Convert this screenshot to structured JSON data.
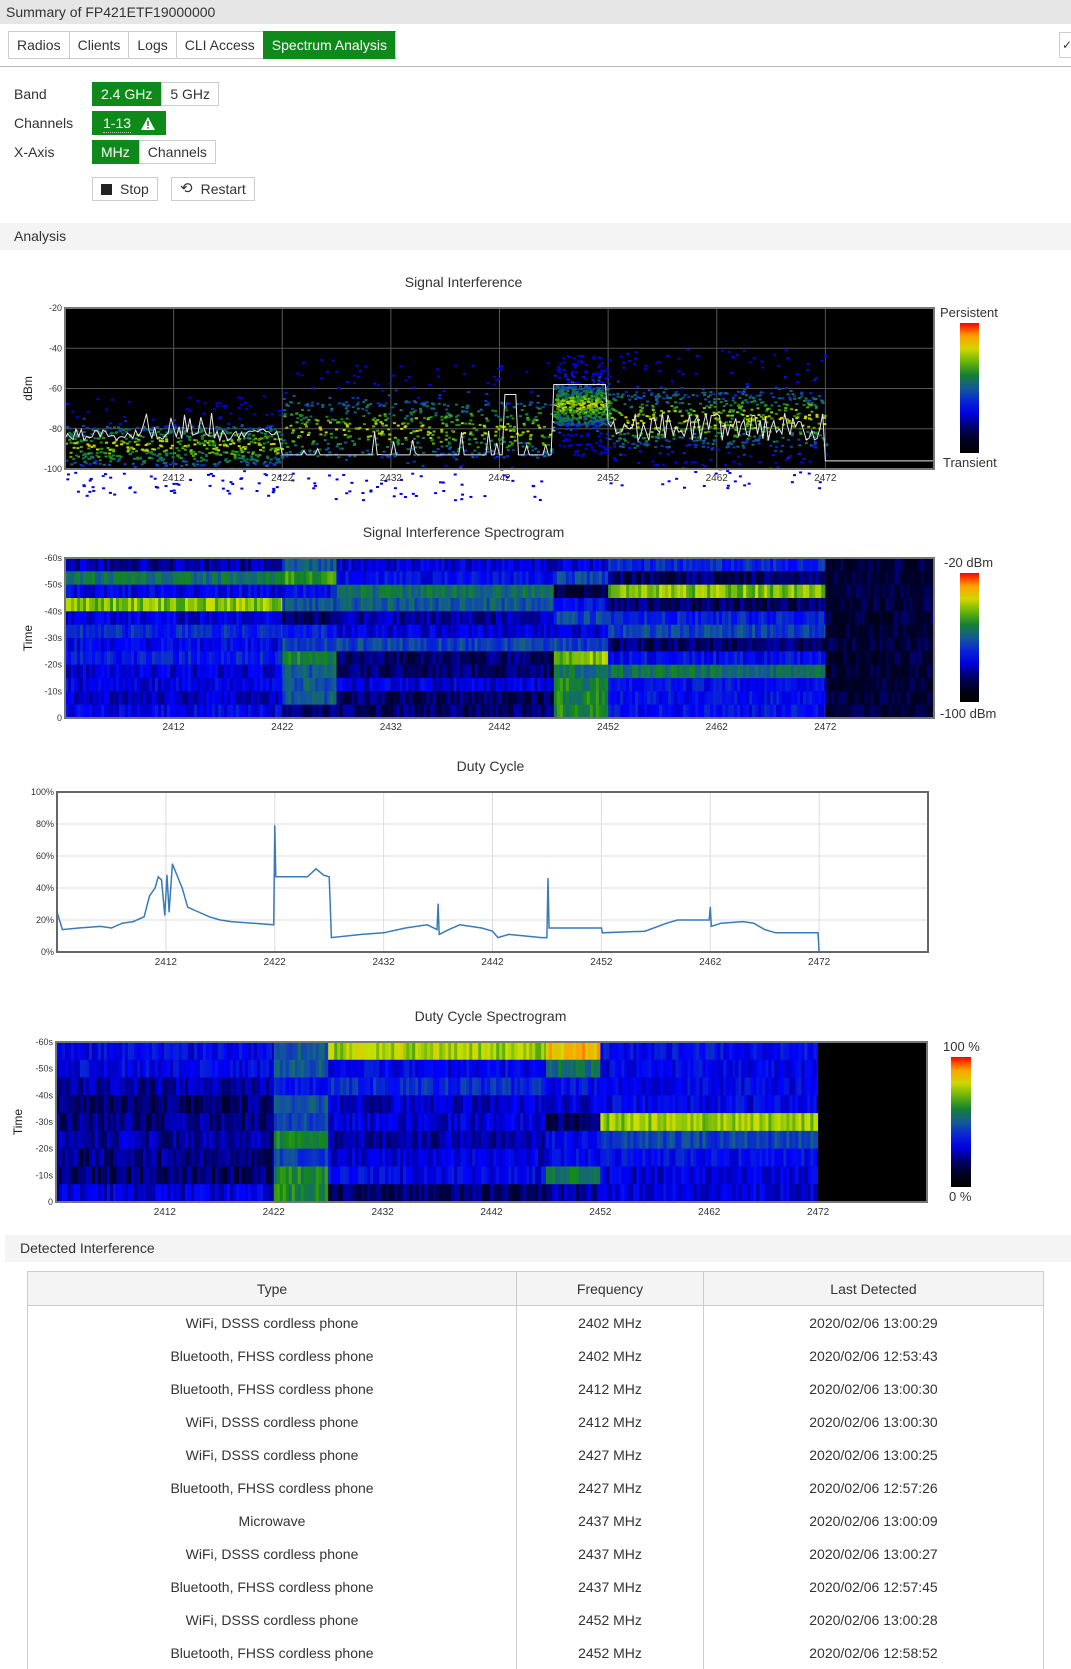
{
  "window": {
    "title": "Summary of FP421ETF19000000"
  },
  "tabs": [
    {
      "label": "Radios",
      "active": false
    },
    {
      "label": "Clients",
      "active": false
    },
    {
      "label": "Logs",
      "active": false
    },
    {
      "label": "CLI Access",
      "active": false
    },
    {
      "label": "Spectrum Analysis",
      "active": true
    }
  ],
  "controls": {
    "band": {
      "label": "Band",
      "options": [
        "2.4 GHz",
        "5 GHz"
      ],
      "selected": "2.4 GHz"
    },
    "channels": {
      "label": "Channels",
      "value": "1-13",
      "icon": "warning-icon"
    },
    "xaxis": {
      "label": "X-Axis",
      "options": [
        "MHz",
        "Channels"
      ],
      "selected": "MHz"
    },
    "stop_label": "Stop",
    "restart_label": "Restart"
  },
  "accent_color": "#0e8a1a",
  "analysis": {
    "title": "Analysis"
  },
  "x_ticks": [
    "2412",
    "2422",
    "2432",
    "2442",
    "2452",
    "2462",
    "2472"
  ],
  "chart_data": [
    {
      "type": "heatmap",
      "title": "Signal Interference",
      "ylabel": "dBm",
      "xlim": [
        2402,
        2482
      ],
      "ylim": [
        -100,
        -20
      ],
      "yticks": [
        "-20",
        "-40",
        "-60",
        "-80",
        "-100"
      ],
      "legend": {
        "top": "Persistent",
        "bottom": "Transient"
      },
      "grid": true
    },
    {
      "type": "heatmap",
      "title": "Signal Interference Spectrogram",
      "ylabel": "Time",
      "xlim": [
        2402,
        2482
      ],
      "yticks": [
        "-60s",
        "-50s",
        "-40s",
        "-30s",
        "-20s",
        "-10s",
        "0"
      ],
      "legend": {
        "top": "-20 dBm",
        "bottom": "-100 dBm"
      }
    },
    {
      "type": "line",
      "title": "Duty Cycle",
      "xlim": [
        2402,
        2482
      ],
      "ylim": [
        0,
        100
      ],
      "yticks": [
        "100%",
        "80%",
        "60%",
        "40%",
        "20%",
        "0%"
      ],
      "grid": true,
      "color": "#3a7ab8",
      "x": [
        2402,
        2402.5,
        2404,
        2406,
        2407,
        2408,
        2409,
        2410,
        2410.5,
        2411,
        2411.3,
        2411.6,
        2411.9,
        2412.1,
        2412.3,
        2412.6,
        2413.5,
        2414,
        2415,
        2416,
        2417,
        2418,
        2420,
        2421.9,
        2422,
        2422.1,
        2425,
        2425.8,
        2426.5,
        2427,
        2427.2,
        2430,
        2432,
        2434,
        2436,
        2436.9,
        2437,
        2437.1,
        2438,
        2439,
        2441,
        2442,
        2442.5,
        2443.5,
        2446.5,
        2447,
        2447.1,
        2447.2,
        2452,
        2452.1,
        2456,
        2458,
        2459,
        2461.9,
        2462,
        2462.1,
        2463,
        2465,
        2466,
        2467,
        2468,
        2471.9,
        2472,
        2482
      ],
      "y": [
        25,
        14,
        15,
        16,
        15,
        18,
        19,
        22,
        35,
        40,
        47,
        45,
        23,
        48,
        25,
        55,
        40,
        28,
        25,
        22,
        20,
        19,
        18,
        17,
        79,
        47,
        47,
        52,
        48,
        47,
        9,
        11,
        12,
        15,
        17,
        14,
        30,
        11,
        14,
        17,
        15,
        13,
        9,
        11,
        9,
        9,
        46,
        15,
        15,
        12,
        13,
        18,
        20,
        20,
        28,
        16,
        18,
        19,
        18,
        14,
        12,
        12,
        0,
        0
      ]
    },
    {
      "type": "heatmap",
      "title": "Duty Cycle Spectrogram",
      "ylabel": "Time",
      "xlim": [
        2402,
        2482
      ],
      "yticks": [
        "-60s",
        "-50s",
        "-40s",
        "-30s",
        "-20s",
        "-10s",
        "0"
      ],
      "legend": {
        "top": "100 %",
        "bottom": "0 %"
      }
    }
  ],
  "detected": {
    "title": "Detected Interference",
    "columns": [
      "Type",
      "Frequency",
      "Last Detected"
    ],
    "rows": [
      [
        "WiFi, DSSS cordless phone",
        "2402 MHz",
        "2020/02/06 13:00:29"
      ],
      [
        "Bluetooth, FHSS cordless phone",
        "2402 MHz",
        "2020/02/06 12:53:43"
      ],
      [
        "Bluetooth, FHSS cordless phone",
        "2412 MHz",
        "2020/02/06 13:00:30"
      ],
      [
        "WiFi, DSSS cordless phone",
        "2412 MHz",
        "2020/02/06 13:00:30"
      ],
      [
        "WiFi, DSSS cordless phone",
        "2427 MHz",
        "2020/02/06 13:00:25"
      ],
      [
        "Bluetooth, FHSS cordless phone",
        "2427 MHz",
        "2020/02/06 12:57:26"
      ],
      [
        "Microwave",
        "2437 MHz",
        "2020/02/06 13:00:09"
      ],
      [
        "WiFi, DSSS cordless phone",
        "2437 MHz",
        "2020/02/06 13:00:27"
      ],
      [
        "Bluetooth, FHSS cordless phone",
        "2437 MHz",
        "2020/02/06 12:57:45"
      ],
      [
        "WiFi, DSSS cordless phone",
        "2452 MHz",
        "2020/02/06 13:00:28"
      ],
      [
        "Bluetooth, FHSS cordless phone",
        "2452 MHz",
        "2020/02/06 12:58:52"
      ]
    ]
  }
}
